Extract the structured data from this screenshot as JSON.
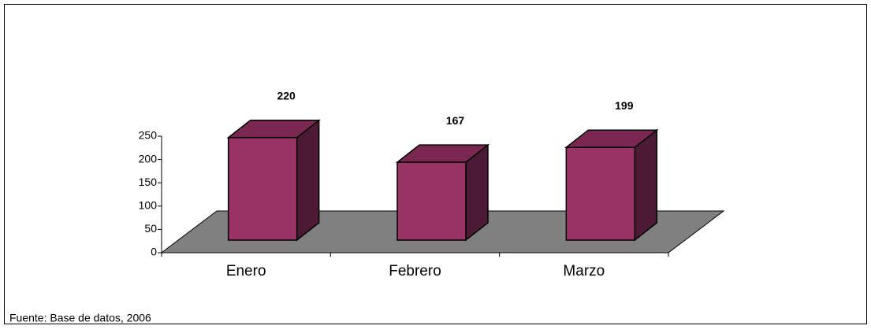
{
  "chart_data": {
    "type": "bar3d",
    "categories": [
      "Enero",
      "Febrero",
      "Marzo"
    ],
    "values": [
      220,
      167,
      199
    ],
    "color": "#993366",
    "ylim": [
      0,
      250
    ],
    "yticks": [
      0,
      50,
      100,
      150,
      200,
      250
    ],
    "source": "Fuente: Base de datos, 2006"
  }
}
